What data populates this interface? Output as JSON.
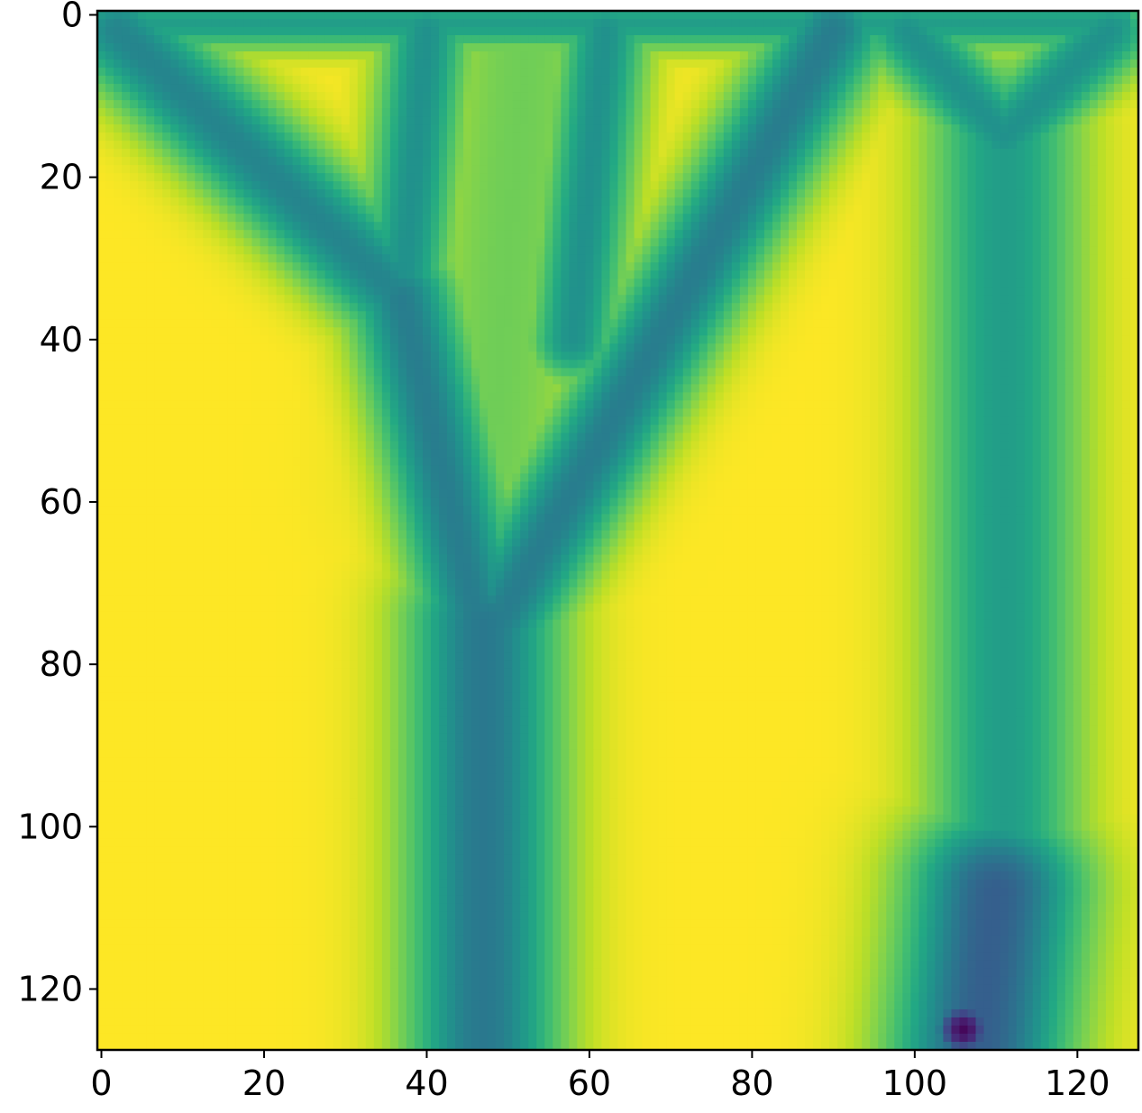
{
  "chart_data": {
    "type": "heatmap",
    "title": "",
    "xlabel": "",
    "ylabel": "",
    "grid": false,
    "legend": "none",
    "colormap": "viridis",
    "image_shape": [
      128,
      128
    ],
    "xlim": [
      -0.5,
      127.5
    ],
    "ylim": [
      127.5,
      -0.5
    ],
    "xticks": [
      0,
      20,
      40,
      60,
      80,
      100,
      120
    ],
    "yticks": [
      0,
      20,
      40,
      60,
      80,
      100,
      120
    ],
    "xtick_labels": [
      "0",
      "20",
      "40",
      "60",
      "80",
      "100",
      "120"
    ],
    "ytick_labels": [
      "0",
      "20",
      "40",
      "60",
      "80",
      "100",
      "120"
    ],
    "background_value": 1.0,
    "features": [
      {
        "name": "top-band",
        "kind": "band",
        "y": 1,
        "x_start": 1,
        "x_end": 126,
        "value": 0.55,
        "width": 2.5
      },
      {
        "name": "left-outer-branch",
        "kind": "line",
        "from": [
          2,
          2
        ],
        "to": [
          37,
          35
        ],
        "value": 0.45,
        "width": 5
      },
      {
        "name": "left-inner-branch",
        "kind": "line",
        "from": [
          40,
          2
        ],
        "to": [
          37,
          35
        ],
        "value": 0.5,
        "width": 4
      },
      {
        "name": "left-funnel-left",
        "kind": "line",
        "from": [
          37,
          35
        ],
        "to": [
          47,
          78
        ],
        "value": 0.42,
        "width": 5
      },
      {
        "name": "right-diagonal-branch",
        "kind": "line",
        "from": [
          90,
          2
        ],
        "to": [
          47,
          78
        ],
        "value": 0.42,
        "width": 5
      },
      {
        "name": "inner-lobe",
        "kind": "line",
        "from": [
          52,
          5
        ],
        "to": [
          48,
          55
        ],
        "value": 0.78,
        "width": 9
      },
      {
        "name": "inner-upper-branch",
        "kind": "line",
        "from": [
          62,
          2
        ],
        "to": [
          58,
          40
        ],
        "value": 0.5,
        "width": 4
      },
      {
        "name": "left-stem",
        "kind": "line",
        "from": [
          47,
          75
        ],
        "to": [
          47,
          127
        ],
        "value": 0.4,
        "width": 7
      },
      {
        "name": "right-stem",
        "kind": "line",
        "from": [
          111,
          15
        ],
        "to": [
          111,
          127
        ],
        "value": 0.55,
        "width": 7
      },
      {
        "name": "right-cap-left",
        "kind": "line",
        "from": [
          99,
          2
        ],
        "to": [
          111,
          15
        ],
        "value": 0.5,
        "width": 4
      },
      {
        "name": "right-cap-right",
        "kind": "line",
        "from": [
          124,
          2
        ],
        "to": [
          111,
          15
        ],
        "value": 0.5,
        "width": 4
      },
      {
        "name": "right-stem-shadow",
        "kind": "line",
        "from": [
          110,
          108
        ],
        "to": [
          108,
          127
        ],
        "value": 0.3,
        "width": 8
      },
      {
        "name": "dark-spot",
        "kind": "blob",
        "center": [
          106,
          125
        ],
        "value": 0.02,
        "width": 3
      }
    ]
  }
}
